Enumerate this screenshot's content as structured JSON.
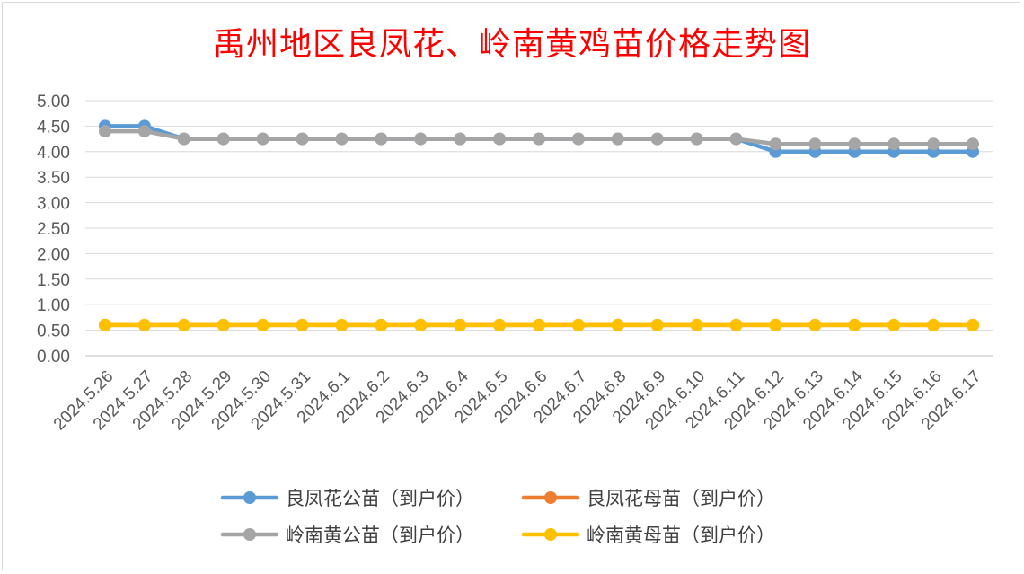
{
  "chart_data": {
    "type": "line",
    "title": "禹州地区良凤花、岭南黄鸡苗价格走势图",
    "xlabel": "",
    "ylabel": "",
    "ylim": [
      0,
      5
    ],
    "ytick_step": 0.5,
    "grid": true,
    "legend_position": "bottom",
    "categories": [
      "2024.5.26",
      "2024.5.27",
      "2024.5.28",
      "2024.5.29",
      "2024.5.30",
      "2024.5.31",
      "2024.6.1",
      "2024.6.2",
      "2024.6.3",
      "2024.6.4",
      "2024.6.5",
      "2024.6.6",
      "2024.6.7",
      "2024.6.8",
      "2024.6.9",
      "2024.6.10",
      "2024.6.11",
      "2024.6.12",
      "2024.6.13",
      "2024.6.14",
      "2024.6.15",
      "2024.6.16",
      "2024.6.17"
    ],
    "series": [
      {
        "name": "良凤花公苗（到户价）",
        "color": "#5b9bd5",
        "values": [
          4.5,
          4.5,
          4.25,
          4.25,
          4.25,
          4.25,
          4.25,
          4.25,
          4.25,
          4.25,
          4.25,
          4.25,
          4.25,
          4.25,
          4.25,
          4.25,
          4.25,
          4.0,
          4.0,
          4.0,
          4.0,
          4.0,
          4.0
        ]
      },
      {
        "name": "良凤花母苗（到户价）",
        "color": "#ed7d31",
        "values": [
          0.6,
          0.6,
          0.6,
          0.6,
          0.6,
          0.6,
          0.6,
          0.6,
          0.6,
          0.6,
          0.6,
          0.6,
          0.6,
          0.6,
          0.6,
          0.6,
          0.6,
          0.6,
          0.6,
          0.6,
          0.6,
          0.6,
          0.6
        ]
      },
      {
        "name": "岭南黄公苗（到户价）",
        "color": "#a5a5a5",
        "values": [
          4.4,
          4.4,
          4.25,
          4.25,
          4.25,
          4.25,
          4.25,
          4.25,
          4.25,
          4.25,
          4.25,
          4.25,
          4.25,
          4.25,
          4.25,
          4.25,
          4.25,
          4.15,
          4.15,
          4.15,
          4.15,
          4.15,
          4.15
        ]
      },
      {
        "name": "岭南黄母苗（到户价）",
        "color": "#ffc000",
        "values": [
          0.6,
          0.6,
          0.6,
          0.6,
          0.6,
          0.6,
          0.6,
          0.6,
          0.6,
          0.6,
          0.6,
          0.6,
          0.6,
          0.6,
          0.6,
          0.6,
          0.6,
          0.6,
          0.6,
          0.6,
          0.6,
          0.6,
          0.6
        ]
      }
    ]
  }
}
